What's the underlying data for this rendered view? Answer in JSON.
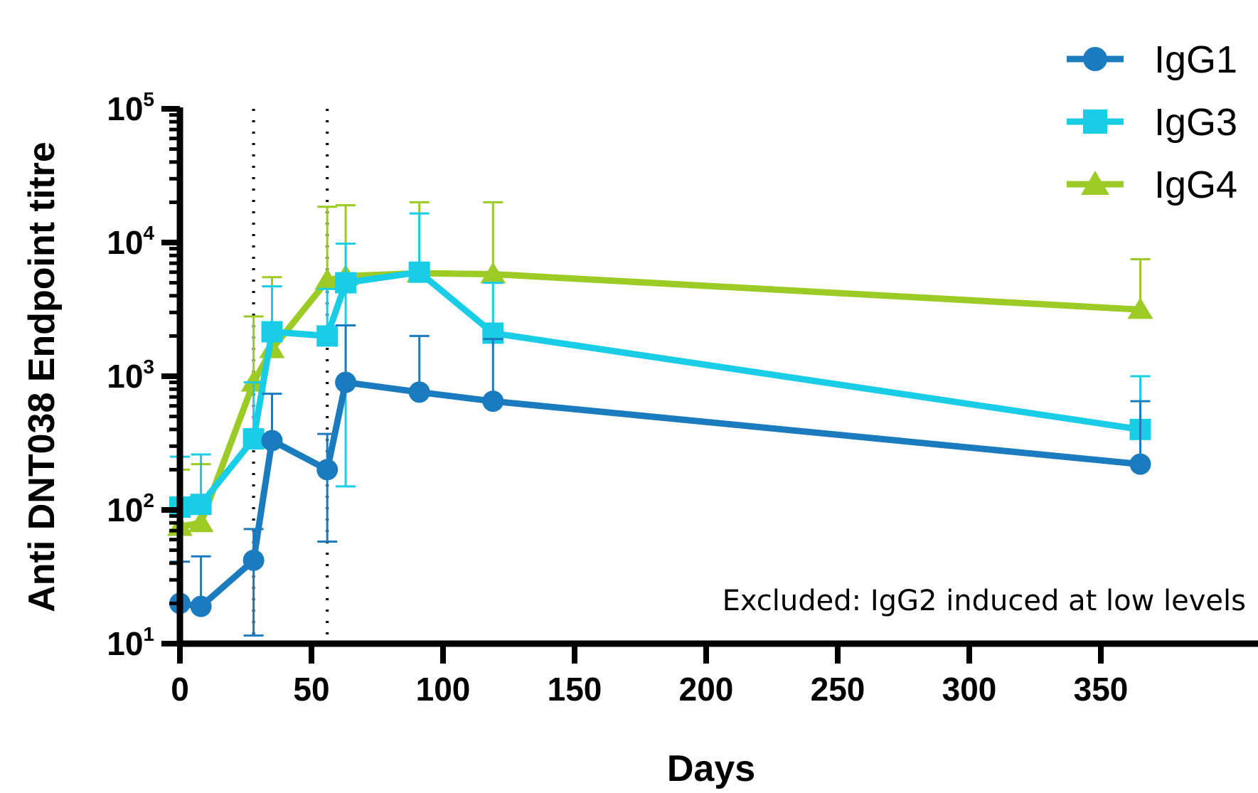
{
  "chart_data": {
    "type": "line",
    "xlabel": "Days",
    "ylabel": "Anti DNT038 Endpoint titre",
    "xlim": [
      0,
      365
    ],
    "ylim": [
      10,
      100000
    ],
    "yscale": "log",
    "x_ticks": [
      "0",
      "50",
      "100",
      "150",
      "200",
      "250",
      "300",
      "350"
    ],
    "y_ticks": [
      {
        "base": "10",
        "exp": "1"
      },
      {
        "base": "10",
        "exp": "2"
      },
      {
        "base": "10",
        "exp": "3"
      },
      {
        "base": "10",
        "exp": "4"
      },
      {
        "base": "10",
        "exp": "5"
      }
    ],
    "reference_lines_x": [
      28,
      56
    ],
    "annotation": "Excluded: IgG2 induced at low levels",
    "legend_position": "top-right",
    "series": [
      {
        "name": "IgG1",
        "color": "#1a7bbf",
        "marker": "circle",
        "points": [
          {
            "x": 0,
            "y": 20,
            "err_low": 0,
            "err_high": 41
          },
          {
            "x": 8,
            "y": 19,
            "err_low": 0,
            "err_high": 45
          },
          {
            "x": 28,
            "y": 42,
            "err_low": 11.5,
            "err_high": 72
          },
          {
            "x": 35,
            "y": 330,
            "err_low": 0,
            "err_high": 740
          },
          {
            "x": 56,
            "y": 200,
            "err_low": 58,
            "err_high": 370
          },
          {
            "x": 63,
            "y": 900,
            "err_low": 0,
            "err_high": 2400
          },
          {
            "x": 91,
            "y": 760,
            "err_low": 0,
            "err_high": 2000
          },
          {
            "x": 119,
            "y": 650,
            "err_low": 0,
            "err_high": 1900
          },
          {
            "x": 365,
            "y": 220,
            "err_low": 0,
            "err_high": 650
          }
        ]
      },
      {
        "name": "IgG3",
        "color": "#19cde6",
        "marker": "square",
        "points": [
          {
            "x": 0,
            "y": 105,
            "err_low": 0,
            "err_high": 250
          },
          {
            "x": 8,
            "y": 110,
            "err_low": 0,
            "err_high": 260
          },
          {
            "x": 28,
            "y": 340,
            "err_low": 0,
            "err_high": 900
          },
          {
            "x": 35,
            "y": 2150,
            "err_low": 0,
            "err_high": 4700
          },
          {
            "x": 56,
            "y": 2000,
            "err_low": 0,
            "err_high": 4500
          },
          {
            "x": 63,
            "y": 5000,
            "err_low": 150,
            "err_high": 9800
          },
          {
            "x": 91,
            "y": 6000,
            "err_low": 0,
            "err_high": 16500
          },
          {
            "x": 119,
            "y": 2100,
            "err_low": 0,
            "err_high": 5000
          },
          {
            "x": 365,
            "y": 400,
            "err_low": 0,
            "err_high": 1000
          }
        ]
      },
      {
        "name": "IgG4",
        "color": "#9bcb24",
        "marker": "triangle",
        "points": [
          {
            "x": 0,
            "y": 75,
            "err_low": 0,
            "err_high": 200
          },
          {
            "x": 8,
            "y": 80,
            "err_low": 0,
            "err_high": 220
          },
          {
            "x": 28,
            "y": 900,
            "err_low": 0,
            "err_high": 2800
          },
          {
            "x": 35,
            "y": 1600,
            "err_low": 0,
            "err_high": 5500
          },
          {
            "x": 56,
            "y": 5200,
            "err_low": 0,
            "err_high": 18500
          },
          {
            "x": 63,
            "y": 5600,
            "err_low": 0,
            "err_high": 19000
          },
          {
            "x": 91,
            "y": 5900,
            "err_low": 0,
            "err_high": 20000
          },
          {
            "x": 119,
            "y": 5800,
            "err_low": 0,
            "err_high": 20000
          },
          {
            "x": 365,
            "y": 3150,
            "err_low": 0,
            "err_high": 7500
          }
        ]
      }
    ]
  }
}
